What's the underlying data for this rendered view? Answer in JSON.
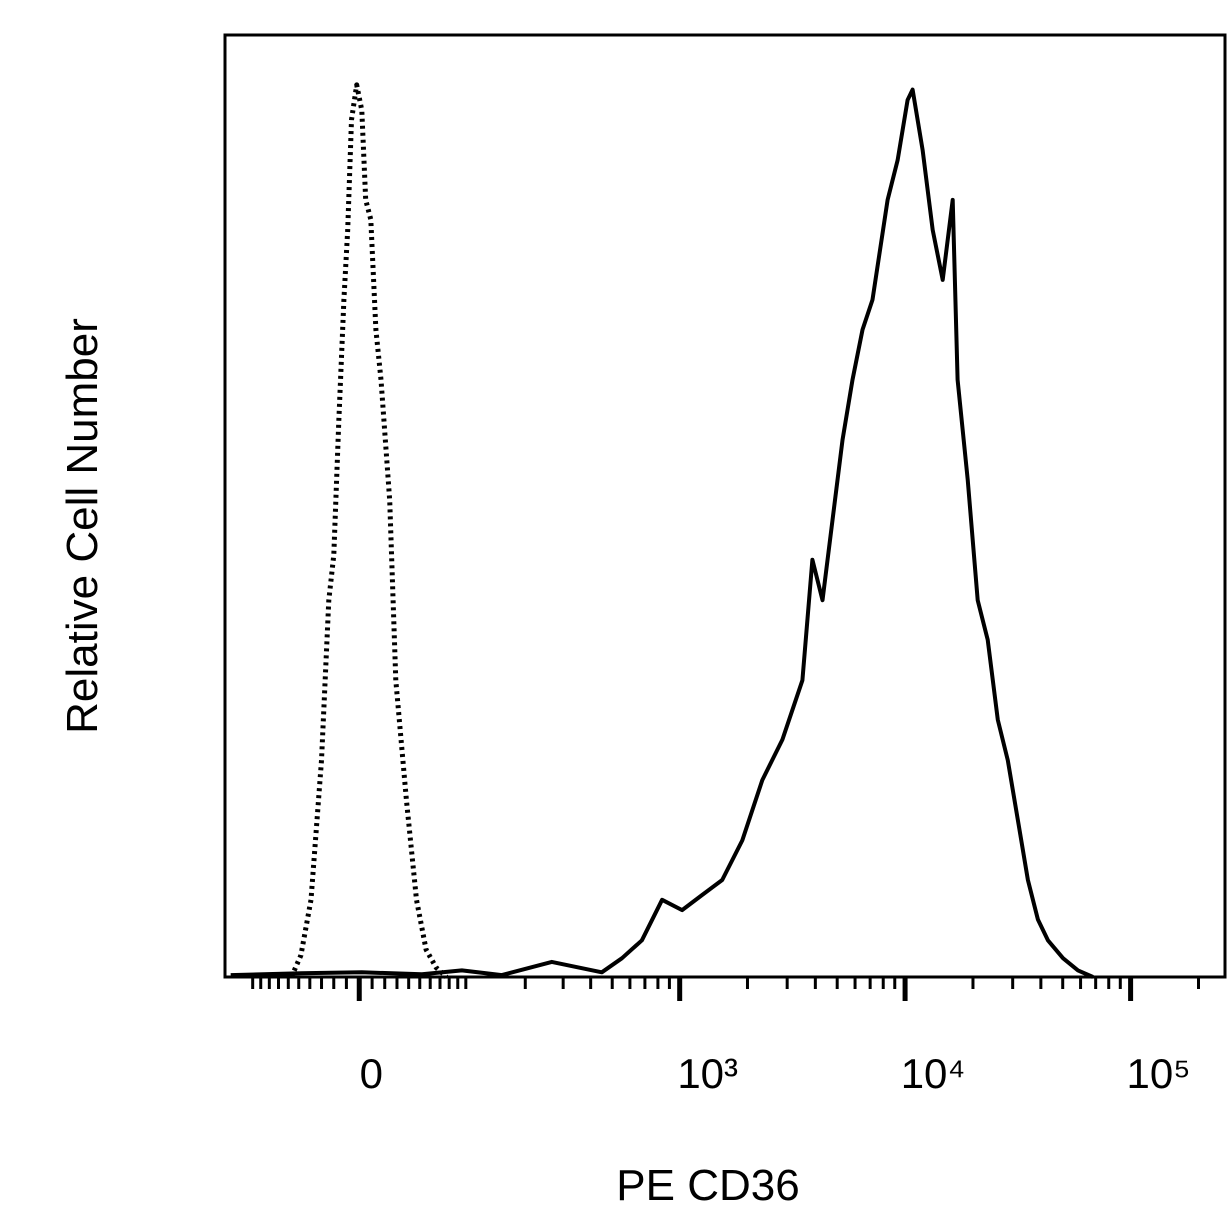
{
  "chart_data": {
    "type": "line",
    "x_label": "PE CD36",
    "y_label": "Relative Cell Number",
    "xscale": "asinh",
    "linear_width": 76,
    "xlim": [
      -140,
      262144
    ],
    "ylim": [
      0,
      100
    ],
    "xticks": [
      0,
      {
        "value": 1000,
        "label": "10³"
      },
      {
        "value": 10000,
        "label": "10⁴"
      },
      {
        "value": 100000,
        "label": "10⁵"
      }
    ],
    "xminorticks": [
      -100,
      -90,
      -80,
      -70,
      -60,
      -50,
      -40,
      -30,
      -20,
      -10,
      10,
      20,
      30,
      40,
      50,
      60,
      70,
      80,
      90,
      100,
      200,
      300,
      400,
      500,
      600,
      700,
      800,
      900,
      2000,
      3000,
      4000,
      5000,
      6000,
      7000,
      8000,
      9000,
      20000,
      30000,
      40000,
      50000,
      60000,
      70000,
      80000,
      90000,
      200000
    ],
    "series": [
      {
        "color": "#000000",
        "dash": "dotted",
        "x": [
          -57,
          -48,
          -39,
          -30,
          -24,
          -20,
          -16,
          -12,
          -9,
          -6,
          -2,
          2,
          5,
          9,
          13,
          17,
          24,
          29,
          38,
          47,
          56,
          66,
          77
        ],
        "values": [
          0,
          2.3,
          8.2,
          23,
          40,
          44.8,
          59,
          71.9,
          79.3,
          91,
          94.7,
          92,
          82.5,
          80.4,
          68.7,
          63.4,
          50.6,
          31.5,
          18.8,
          8.2,
          2.9,
          1,
          0
        ]
      },
      {
        "color": "#000000",
        "dash": "solid",
        "x": [
          -131,
          -48,
          2,
          52,
          95,
          154,
          266,
          449,
          553,
          679,
          835,
          1025,
          1258,
          1545,
          1896,
          2327,
          2857,
          3506,
          3883,
          4302,
          4765,
          5277,
          5846,
          6475,
          7173,
          8366,
          9266,
          10265,
          10797,
          11959,
          13254,
          14681,
          16259,
          17103,
          18951,
          20990,
          23255,
          25760,
          28537,
          31616,
          35028,
          38811,
          43000,
          50128,
          58447,
          68118
        ],
        "values": [
          0.2,
          0.4,
          0.5,
          0.3,
          0.7,
          0.2,
          1.6,
          0.5,
          2,
          3.9,
          8.2,
          7.1,
          8.7,
          10.3,
          14.5,
          20.9,
          25.2,
          31.5,
          44.3,
          40,
          48.5,
          57,
          63.4,
          68.7,
          71.9,
          82.5,
          86.7,
          93.1,
          94.2,
          87.8,
          79.3,
          74,
          82.5,
          63.4,
          52.8,
          40,
          35.8,
          27.3,
          23,
          16.7,
          10.3,
          6.1,
          3.9,
          2,
          0.7,
          0
        ]
      }
    ]
  }
}
